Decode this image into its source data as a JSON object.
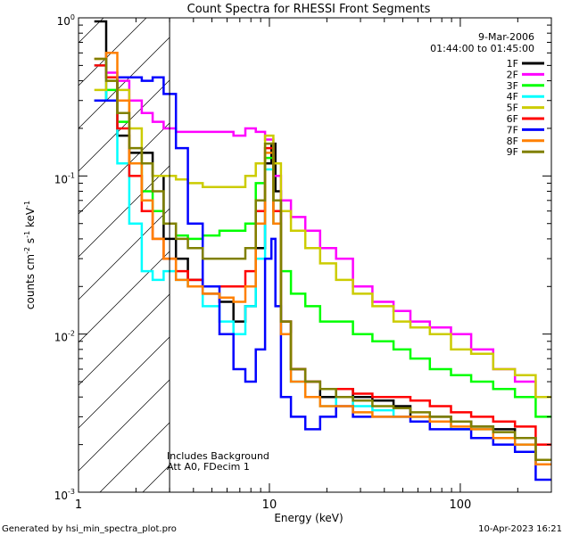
{
  "chart_data": {
    "type": "line",
    "title": "Count Spectra for RHESSI Front Segments",
    "xlabel": "Energy (keV)",
    "ylabel": {
      "base": "counts cm",
      "exp1": "-2",
      "mid1": " s",
      "exp2": "-1",
      "mid2": " keV",
      "exp3": "-1"
    },
    "xscale": "log",
    "yscale": "log",
    "xlim": [
      1,
      300
    ],
    "ylim": [
      0.001,
      1
    ],
    "x_ticks": [
      {
        "value": 1,
        "label": "1"
      },
      {
        "value": 10,
        "label": "10"
      },
      {
        "value": 100,
        "label": "100"
      }
    ],
    "y_ticks": [
      {
        "value": 1,
        "mant": "10",
        "exp": "0"
      },
      {
        "value": 0.1,
        "mant": "10",
        "exp": "-1"
      },
      {
        "value": 0.01,
        "mant": "10",
        "exp": "-2"
      },
      {
        "value": 0.001,
        "mant": "10",
        "exp": "-3"
      }
    ],
    "legend": {
      "position": "top-right",
      "date": "9-Mar-2006",
      "time_range": "01:44:00 to 01:45:00"
    },
    "annotations": [
      "Includes Background",
      "Att A0, FDecim 1"
    ],
    "hatched_region_max_energy": 3,
    "series": [
      {
        "name": "1F",
        "color": "#000000",
        "values": [
          [
            1.3,
            0.95
          ],
          [
            1.5,
            0.42
          ],
          [
            1.7,
            0.18
          ],
          [
            2.0,
            0.14
          ],
          [
            2.3,
            0.14
          ],
          [
            2.6,
            0.1
          ],
          [
            3.0,
            0.04
          ],
          [
            3.5,
            0.03
          ],
          [
            4.0,
            0.022
          ],
          [
            5.0,
            0.018
          ],
          [
            6.0,
            0.016
          ],
          [
            7.0,
            0.012
          ],
          [
            8.0,
            0.015
          ],
          [
            9.0,
            0.035
          ],
          [
            10.0,
            0.12
          ],
          [
            10.5,
            0.16
          ],
          [
            11.0,
            0.08
          ],
          [
            12.0,
            0.012
          ],
          [
            14.0,
            0.006
          ],
          [
            17.0,
            0.005
          ],
          [
            20.0,
            0.004
          ],
          [
            25.0,
            0.0045
          ],
          [
            30.0,
            0.004
          ],
          [
            40.0,
            0.0038
          ],
          [
            50.0,
            0.0035
          ],
          [
            60.0,
            0.003
          ],
          [
            80.0,
            0.003
          ],
          [
            100.0,
            0.0028
          ],
          [
            130.0,
            0.0026
          ],
          [
            170.0,
            0.0025
          ],
          [
            220.0,
            0.0022
          ],
          [
            280.0,
            0.0015
          ]
        ]
      },
      {
        "name": "2F",
        "color": "#ff00ff",
        "values": [
          [
            1.3,
            0.3
          ],
          [
            1.5,
            0.45
          ],
          [
            1.7,
            0.4
          ],
          [
            2.0,
            0.3
          ],
          [
            2.3,
            0.25
          ],
          [
            2.6,
            0.22
          ],
          [
            3.0,
            0.2
          ],
          [
            3.5,
            0.19
          ],
          [
            4.0,
            0.19
          ],
          [
            5.0,
            0.19
          ],
          [
            6.0,
            0.19
          ],
          [
            7.0,
            0.18
          ],
          [
            8.0,
            0.2
          ],
          [
            9.0,
            0.19
          ],
          [
            10.0,
            0.17
          ],
          [
            11.0,
            0.1
          ],
          [
            12.0,
            0.07
          ],
          [
            14.0,
            0.055
          ],
          [
            17.0,
            0.045
          ],
          [
            20.0,
            0.035
          ],
          [
            25.0,
            0.03
          ],
          [
            30.0,
            0.02
          ],
          [
            40.0,
            0.016
          ],
          [
            50.0,
            0.014
          ],
          [
            60.0,
            0.012
          ],
          [
            80.0,
            0.011
          ],
          [
            100.0,
            0.01
          ],
          [
            130.0,
            0.008
          ],
          [
            170.0,
            0.006
          ],
          [
            220.0,
            0.005
          ],
          [
            280.0,
            0.004
          ]
        ]
      },
      {
        "name": "3F",
        "color": "#00ff00",
        "values": [
          [
            1.3,
            0.3
          ],
          [
            1.5,
            0.35
          ],
          [
            1.7,
            0.22
          ],
          [
            2.0,
            0.12
          ],
          [
            2.3,
            0.08
          ],
          [
            2.6,
            0.06
          ],
          [
            3.0,
            0.05
          ],
          [
            3.5,
            0.042
          ],
          [
            4.0,
            0.04
          ],
          [
            5.0,
            0.042
          ],
          [
            6.0,
            0.045
          ],
          [
            7.0,
            0.045
          ],
          [
            8.0,
            0.05
          ],
          [
            9.0,
            0.09
          ],
          [
            10.0,
            0.13
          ],
          [
            11.0,
            0.05
          ],
          [
            12.0,
            0.025
          ],
          [
            14.0,
            0.018
          ],
          [
            17.0,
            0.015
          ],
          [
            20.0,
            0.012
          ],
          [
            25.0,
            0.012
          ],
          [
            30.0,
            0.01
          ],
          [
            40.0,
            0.009
          ],
          [
            50.0,
            0.008
          ],
          [
            60.0,
            0.007
          ],
          [
            80.0,
            0.006
          ],
          [
            100.0,
            0.0055
          ],
          [
            130.0,
            0.005
          ],
          [
            170.0,
            0.0045
          ],
          [
            220.0,
            0.004
          ],
          [
            280.0,
            0.003
          ]
        ]
      },
      {
        "name": "4F",
        "color": "#00ffff",
        "values": [
          [
            1.3,
            0.5
          ],
          [
            1.5,
            0.3
          ],
          [
            1.7,
            0.12
          ],
          [
            2.0,
            0.05
          ],
          [
            2.3,
            0.025
          ],
          [
            2.6,
            0.022
          ],
          [
            3.0,
            0.025
          ],
          [
            3.5,
            0.022
          ],
          [
            4.0,
            0.02
          ],
          [
            5.0,
            0.015
          ],
          [
            6.0,
            0.012
          ],
          [
            7.0,
            0.01
          ],
          [
            8.0,
            0.015
          ],
          [
            9.0,
            0.03
          ],
          [
            10.0,
            0.11
          ],
          [
            11.0,
            0.05
          ],
          [
            12.0,
            0.01
          ],
          [
            14.0,
            0.005
          ],
          [
            17.0,
            0.004
          ],
          [
            20.0,
            0.0035
          ],
          [
            25.0,
            0.004
          ],
          [
            30.0,
            0.0035
          ],
          [
            40.0,
            0.0033
          ],
          [
            50.0,
            0.003
          ],
          [
            60.0,
            0.003
          ],
          [
            80.0,
            0.0028
          ],
          [
            100.0,
            0.0025
          ],
          [
            130.0,
            0.0025
          ],
          [
            170.0,
            0.0022
          ],
          [
            220.0,
            0.002
          ],
          [
            280.0,
            0.0015
          ]
        ]
      },
      {
        "name": "5F",
        "color": "#cccc00",
        "values": [
          [
            1.3,
            0.35
          ],
          [
            1.5,
            0.4
          ],
          [
            1.7,
            0.35
          ],
          [
            2.0,
            0.2
          ],
          [
            2.3,
            0.12
          ],
          [
            2.6,
            0.1
          ],
          [
            3.0,
            0.1
          ],
          [
            3.5,
            0.095
          ],
          [
            4.0,
            0.09
          ],
          [
            5.0,
            0.085
          ],
          [
            6.0,
            0.085
          ],
          [
            7.0,
            0.085
          ],
          [
            8.0,
            0.1
          ],
          [
            9.0,
            0.12
          ],
          [
            10.0,
            0.18
          ],
          [
            11.0,
            0.12
          ],
          [
            12.0,
            0.06
          ],
          [
            14.0,
            0.045
          ],
          [
            17.0,
            0.035
          ],
          [
            20.0,
            0.028
          ],
          [
            25.0,
            0.022
          ],
          [
            30.0,
            0.018
          ],
          [
            40.0,
            0.015
          ],
          [
            50.0,
            0.012
          ],
          [
            60.0,
            0.011
          ],
          [
            80.0,
            0.01
          ],
          [
            100.0,
            0.008
          ],
          [
            130.0,
            0.0075
          ],
          [
            170.0,
            0.006
          ],
          [
            220.0,
            0.0055
          ],
          [
            280.0,
            0.004
          ]
        ]
      },
      {
        "name": "6F",
        "color": "#ff0000",
        "values": [
          [
            1.3,
            0.5
          ],
          [
            1.5,
            0.42
          ],
          [
            1.7,
            0.2
          ],
          [
            2.0,
            0.1
          ],
          [
            2.3,
            0.06
          ],
          [
            2.6,
            0.04
          ],
          [
            3.0,
            0.03
          ],
          [
            3.5,
            0.025
          ],
          [
            4.0,
            0.022
          ],
          [
            5.0,
            0.02
          ],
          [
            6.0,
            0.02
          ],
          [
            7.0,
            0.02
          ],
          [
            8.0,
            0.025
          ],
          [
            9.0,
            0.06
          ],
          [
            10.0,
            0.15
          ],
          [
            11.0,
            0.06
          ],
          [
            12.0,
            0.012
          ],
          [
            14.0,
            0.006
          ],
          [
            17.0,
            0.005
          ],
          [
            20.0,
            0.0045
          ],
          [
            25.0,
            0.0045
          ],
          [
            30.0,
            0.0042
          ],
          [
            40.0,
            0.004
          ],
          [
            50.0,
            0.004
          ],
          [
            60.0,
            0.0038
          ],
          [
            80.0,
            0.0035
          ],
          [
            100.0,
            0.0032
          ],
          [
            130.0,
            0.003
          ],
          [
            170.0,
            0.0028
          ],
          [
            220.0,
            0.0026
          ],
          [
            280.0,
            0.002
          ]
        ]
      },
      {
        "name": "7F",
        "color": "#0000ff",
        "values": [
          [
            1.3,
            0.3
          ],
          [
            1.5,
            0.3
          ],
          [
            1.7,
            0.42
          ],
          [
            2.0,
            0.42
          ],
          [
            2.3,
            0.4
          ],
          [
            2.6,
            0.42
          ],
          [
            3.0,
            0.33
          ],
          [
            3.5,
            0.15
          ],
          [
            4.0,
            0.05
          ],
          [
            5.0,
            0.02
          ],
          [
            6.0,
            0.01
          ],
          [
            7.0,
            0.006
          ],
          [
            8.0,
            0.005
          ],
          [
            9.0,
            0.008
          ],
          [
            10.0,
            0.03
          ],
          [
            10.5,
            0.04
          ],
          [
            11.0,
            0.015
          ],
          [
            12.0,
            0.004
          ],
          [
            14.0,
            0.003
          ],
          [
            17.0,
            0.0025
          ],
          [
            20.0,
            0.003
          ],
          [
            25.0,
            0.0035
          ],
          [
            30.0,
            0.003
          ],
          [
            40.0,
            0.003
          ],
          [
            50.0,
            0.003
          ],
          [
            60.0,
            0.0028
          ],
          [
            80.0,
            0.0025
          ],
          [
            100.0,
            0.0025
          ],
          [
            130.0,
            0.0022
          ],
          [
            170.0,
            0.002
          ],
          [
            220.0,
            0.0018
          ],
          [
            280.0,
            0.0012
          ]
        ]
      },
      {
        "name": "8F",
        "color": "#ff8000",
        "values": [
          [
            1.3,
            0.55
          ],
          [
            1.5,
            0.6
          ],
          [
            1.7,
            0.3
          ],
          [
            2.0,
            0.12
          ],
          [
            2.3,
            0.07
          ],
          [
            2.6,
            0.04
          ],
          [
            3.0,
            0.03
          ],
          [
            3.5,
            0.022
          ],
          [
            4.0,
            0.02
          ],
          [
            5.0,
            0.018
          ],
          [
            6.0,
            0.017
          ],
          [
            7.0,
            0.016
          ],
          [
            8.0,
            0.02
          ],
          [
            9.0,
            0.05
          ],
          [
            10.0,
            0.14
          ],
          [
            11.0,
            0.05
          ],
          [
            12.0,
            0.01
          ],
          [
            14.0,
            0.005
          ],
          [
            17.0,
            0.004
          ],
          [
            20.0,
            0.0035
          ],
          [
            25.0,
            0.0035
          ],
          [
            30.0,
            0.0032
          ],
          [
            40.0,
            0.003
          ],
          [
            50.0,
            0.003
          ],
          [
            60.0,
            0.003
          ],
          [
            80.0,
            0.0028
          ],
          [
            100.0,
            0.0026
          ],
          [
            130.0,
            0.0025
          ],
          [
            170.0,
            0.0022
          ],
          [
            220.0,
            0.002
          ],
          [
            280.0,
            0.0015
          ]
        ]
      },
      {
        "name": "9F",
        "color": "#808000",
        "values": [
          [
            1.3,
            0.55
          ],
          [
            1.5,
            0.4
          ],
          [
            1.7,
            0.25
          ],
          [
            2.0,
            0.15
          ],
          [
            2.3,
            0.12
          ],
          [
            2.6,
            0.08
          ],
          [
            3.0,
            0.05
          ],
          [
            3.5,
            0.04
          ],
          [
            4.0,
            0.035
          ],
          [
            5.0,
            0.03
          ],
          [
            6.0,
            0.03
          ],
          [
            7.0,
            0.03
          ],
          [
            8.0,
            0.035
          ],
          [
            9.0,
            0.07
          ],
          [
            10.0,
            0.16
          ],
          [
            11.0,
            0.07
          ],
          [
            12.0,
            0.012
          ],
          [
            14.0,
            0.006
          ],
          [
            17.0,
            0.005
          ],
          [
            20.0,
            0.0045
          ],
          [
            25.0,
            0.004
          ],
          [
            30.0,
            0.0038
          ],
          [
            40.0,
            0.0035
          ],
          [
            50.0,
            0.0034
          ],
          [
            60.0,
            0.0032
          ],
          [
            80.0,
            0.003
          ],
          [
            100.0,
            0.0028
          ],
          [
            130.0,
            0.0026
          ],
          [
            170.0,
            0.0024
          ],
          [
            220.0,
            0.0022
          ],
          [
            280.0,
            0.0016
          ]
        ]
      }
    ]
  },
  "footer": {
    "generated_by": "Generated by hsi_min_spectra_plot.pro",
    "timestamp": "10-Apr-2023 16:21"
  }
}
